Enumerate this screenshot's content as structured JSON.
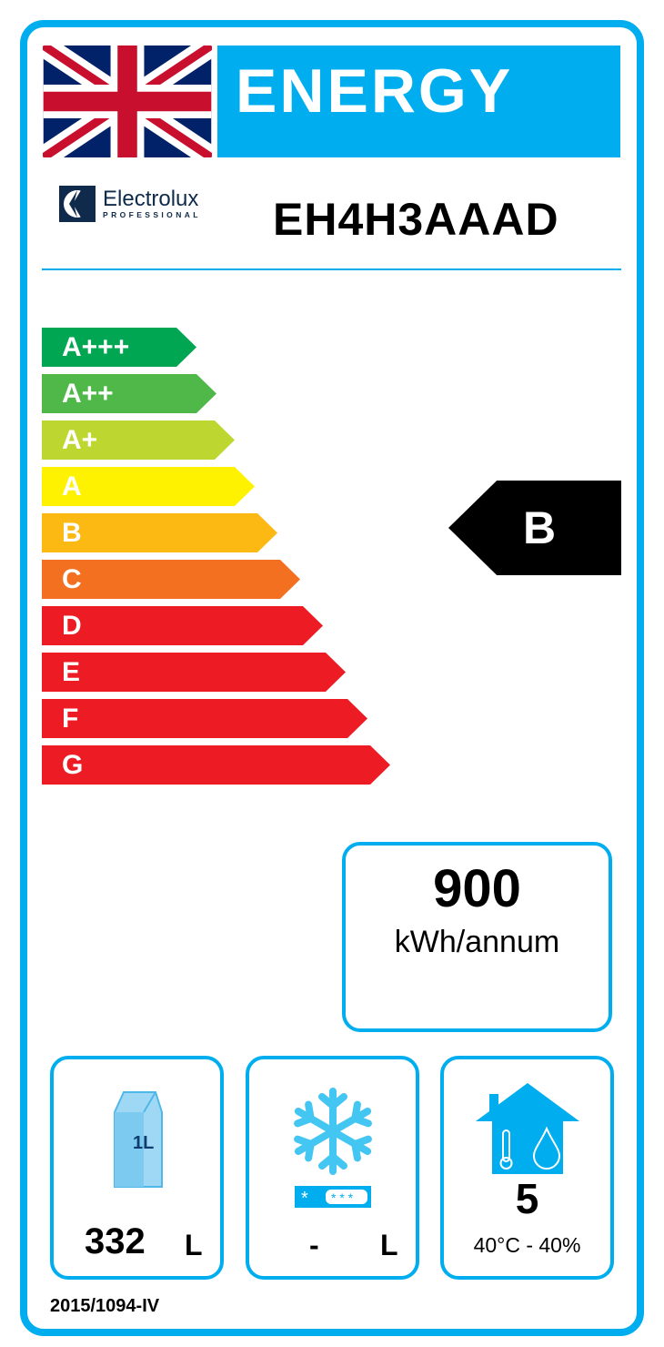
{
  "header": {
    "title": "ENERGY",
    "flag_icon": "union-jack-flag",
    "brand": "Electrolux",
    "brand_sub": "PROFESSIONAL",
    "model": "EH4H3AAAD"
  },
  "scale": [
    {
      "label": "A+++",
      "color": "#00a651"
    },
    {
      "label": "A++",
      "color": "#50b848"
    },
    {
      "label": "A+",
      "color": "#bed630"
    },
    {
      "label": "A",
      "color": "#fff200"
    },
    {
      "label": "B",
      "color": "#fdb913"
    },
    {
      "label": "C",
      "color": "#f37021"
    },
    {
      "label": "D",
      "color": "#ed1c24"
    },
    {
      "label": "E",
      "color": "#ed1c24"
    },
    {
      "label": "F",
      "color": "#ed1c24"
    },
    {
      "label": "G",
      "color": "#ed1c24"
    }
  ],
  "rating": "B",
  "consumption": {
    "value": "900",
    "unit": "kWh/annum"
  },
  "storage": {
    "value": "332",
    "unit": "L",
    "icon": "milk-carton-icon",
    "carton_label": "1L"
  },
  "freezer": {
    "value": "-",
    "unit": "L",
    "icon": "snowflake-icon"
  },
  "climate": {
    "class": "5",
    "conditions": "40°C - 40%",
    "icon": "house-climate-icon"
  },
  "regulation": "2015/1094-IV",
  "accent": "#00aeef"
}
